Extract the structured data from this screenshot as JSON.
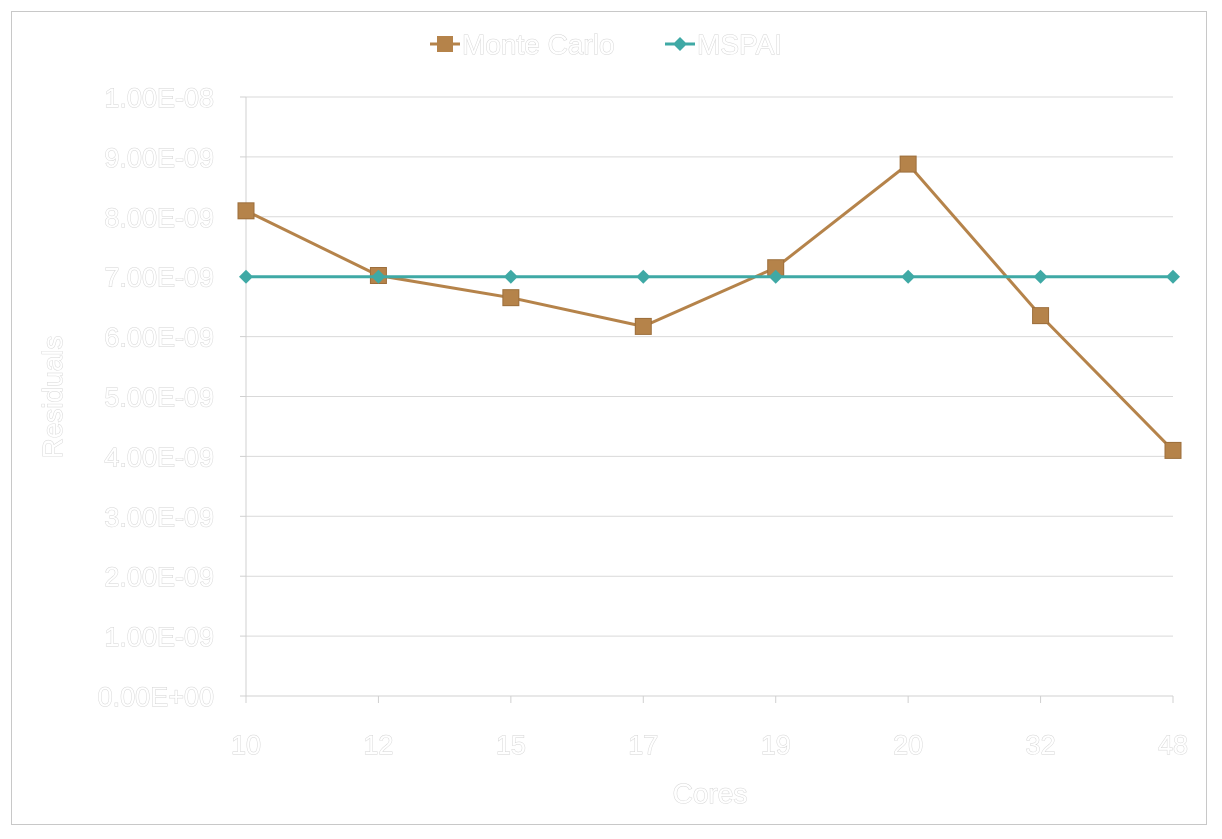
{
  "chart_data": {
    "type": "line",
    "title": "",
    "xlabel": "Cores",
    "ylabel": "Residuals",
    "categories": [
      "10",
      "12",
      "15",
      "17",
      "19",
      "20",
      "32",
      "48"
    ],
    "ylim": [
      0,
      1e-08
    ],
    "yticks": [
      0,
      1e-09,
      2e-09,
      3e-09,
      4e-09,
      5e-09,
      6e-09,
      7e-09,
      8e-09,
      9e-09,
      1e-08
    ],
    "ytick_labels": [
      "0.00E+00",
      "1.00E-09",
      "2.00E-09",
      "3.00E-09",
      "4.00E-09",
      "5.00E-09",
      "6.00E-09",
      "7.00E-09",
      "8.00E-09",
      "9.00E-09",
      "1.00E-08"
    ],
    "grid": true,
    "legend_position": "top",
    "series": [
      {
        "name": "Monte Carlo",
        "marker": "square",
        "color": "#b5834a",
        "values": [
          8.1e-09,
          7.02e-09,
          6.65e-09,
          6.17e-09,
          7.15e-09,
          8.88e-09,
          6.35e-09,
          4.1e-09
        ]
      },
      {
        "name": "MSPAI",
        "marker": "diamond",
        "color": "#3fa9a5",
        "values": [
          7e-09,
          7e-09,
          7e-09,
          7e-09,
          7e-09,
          7e-09,
          7e-09,
          7e-09
        ]
      }
    ]
  }
}
